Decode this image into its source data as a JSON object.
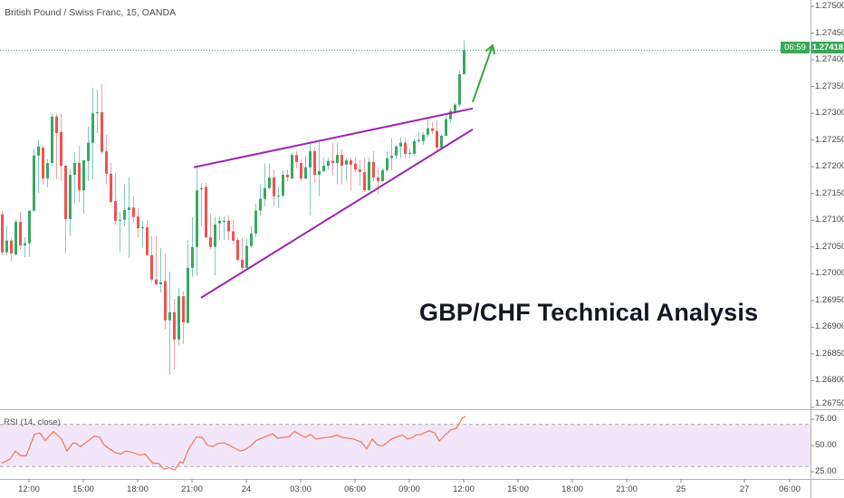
{
  "header": {
    "symbol_title": "British Pound / Swiss Franc, 15, OANDA"
  },
  "overlay_title": "GBP/CHF Technical Analysis",
  "colors": {
    "up_body": "#38a862",
    "up_wick": "#7fcbbf",
    "down_body": "#ef5350",
    "down_wick": "#f3a09f",
    "trendline": "#9c27b0",
    "arrow": "#2eaa3c",
    "rsi_line": "#f2764c",
    "rsi_band": "#f3e6fb",
    "price_label_bg": "#3aa757"
  },
  "price_axis": {
    "labels": [
      "1.27500",
      "1.27450",
      "1.27400",
      "1.27350",
      "1.27300",
      "1.27250",
      "1.27200",
      "1.27150",
      "1.27100",
      "1.27050",
      "1.27000",
      "1.26950",
      "1.26900",
      "1.26850",
      "1.26800",
      "1.26750"
    ],
    "range": [
      1.2675,
      1.275
    ],
    "current_price": "1.27418",
    "current_value": 1.27418,
    "countdown": "06:59"
  },
  "time_axis": {
    "labels": [
      {
        "text": "12:00",
        "bar": 6
      },
      {
        "text": "15:00",
        "bar": 18
      },
      {
        "text": "18:00",
        "bar": 30
      },
      {
        "text": "21:00",
        "bar": 42
      },
      {
        "text": "24",
        "bar": 54
      },
      {
        "text": "03:00",
        "bar": 66
      },
      {
        "text": "06:00",
        "bar": 78
      },
      {
        "text": "09:00",
        "bar": 90
      },
      {
        "text": "12:00",
        "bar": 102
      },
      {
        "text": "15:00",
        "bar": 114
      },
      {
        "text": "18:00",
        "bar": 126
      },
      {
        "text": "21:00",
        "bar": 138
      },
      {
        "text": "25",
        "bar": 150
      },
      {
        "text": "27",
        "bar": 164
      },
      {
        "text": "06:00",
        "bar": 174
      }
    ]
  },
  "rsi": {
    "label": "RSI (14, close)",
    "axis_labels": [
      "75.00",
      "50.00",
      "25.00"
    ],
    "upper_band": 70,
    "lower_band": 30,
    "points": [
      [
        0,
        33.1
      ],
      [
        1.8,
        36.9
      ],
      [
        3,
        44.7
      ],
      [
        4.2,
        40.3
      ],
      [
        5.4,
        40.3
      ],
      [
        7.2,
        60.5
      ],
      [
        8.4,
        62
      ],
      [
        9.6,
        54.8
      ],
      [
        11.4,
        63.4
      ],
      [
        13.2,
        56.2
      ],
      [
        14.4,
        44.7
      ],
      [
        15.6,
        51.9
      ],
      [
        16.2,
        52.5
      ],
      [
        17.4,
        49
      ],
      [
        19.2,
        54.8
      ],
      [
        20.4,
        59.1
      ],
      [
        21.6,
        57.7
      ],
      [
        22.6,
        50.4
      ],
      [
        25,
        43.2
      ],
      [
        26.2,
        41.8
      ],
      [
        27.4,
        44.7
      ],
      [
        28.6,
        43.8
      ],
      [
        30.4,
        40.9
      ],
      [
        31.6,
        41.8
      ],
      [
        33.4,
        33.1
      ],
      [
        34.6,
        33.1
      ],
      [
        35.8,
        27.3
      ],
      [
        37,
        28.8
      ],
      [
        38.2,
        26.7
      ],
      [
        39.4,
        34.5
      ],
      [
        40,
        33.1
      ],
      [
        41.2,
        46.1
      ],
      [
        43,
        58.2
      ],
      [
        44.2,
        57.7
      ],
      [
        45.4,
        50.4
      ],
      [
        46.6,
        49
      ],
      [
        47.8,
        51.9
      ],
      [
        49,
        52.5
      ],
      [
        50.2,
        50.4
      ],
      [
        52.6,
        44.7
      ],
      [
        53.8,
        46.1
      ],
      [
        55,
        49.6
      ],
      [
        56.2,
        54.8
      ],
      [
        58.6,
        59.1
      ],
      [
        59.8,
        61.1
      ],
      [
        61,
        56.8
      ],
      [
        62.2,
        57.7
      ],
      [
        63.4,
        58.2
      ],
      [
        64.6,
        63.4
      ],
      [
        67,
        57.7
      ],
      [
        68.2,
        60.5
      ],
      [
        69.4,
        56.2
      ],
      [
        71.6,
        57.7
      ],
      [
        72.8,
        58.2
      ],
      [
        74,
        60
      ],
      [
        75.2,
        57.7
      ],
      [
        77.6,
        56.2
      ],
      [
        79.4,
        53.3
      ],
      [
        80.6,
        46.7
      ],
      [
        81.8,
        56.2
      ],
      [
        83,
        50.4
      ],
      [
        84.2,
        49.6
      ],
      [
        86,
        56.2
      ],
      [
        88.4,
        60
      ],
      [
        89.6,
        56.2
      ],
      [
        90.8,
        57.7
      ],
      [
        91.4,
        60
      ],
      [
        92.6,
        60.5
      ],
      [
        94.4,
        64
      ],
      [
        95.6,
        62
      ],
      [
        96.6,
        54.2
      ],
      [
        98,
        60.5
      ],
      [
        99.2,
        64.9
      ],
      [
        100.4,
        66.3
      ],
      [
        101.6,
        75.6
      ],
      [
        102.4,
        77.9
      ]
    ]
  },
  "chart_data": {
    "type": "candlestick",
    "title": "British Pound / Swiss Franc, 15, OANDA",
    "ylim": [
      1.2675,
      1.275
    ],
    "fields": [
      "open",
      "high",
      "low",
      "close"
    ],
    "candles": [
      [
        1.27111,
        1.27118,
        1.27035,
        1.2704
      ],
      [
        1.2704,
        1.27089,
        1.27035,
        1.27062
      ],
      [
        1.27062,
        1.27068,
        1.27023,
        1.27038
      ],
      [
        1.27036,
        1.27101,
        1.27033,
        1.27097
      ],
      [
        1.27097,
        1.27116,
        1.27045,
        1.27053
      ],
      [
        1.27053,
        1.27068,
        1.27031,
        1.27057
      ],
      [
        1.27057,
        1.27118,
        1.27031,
        1.27118
      ],
      [
        1.27118,
        1.27234,
        1.27116,
        1.27221
      ],
      [
        1.27221,
        1.2725,
        1.27151,
        1.27238
      ],
      [
        1.27236,
        1.2724,
        1.27167,
        1.27178
      ],
      [
        1.27178,
        1.27214,
        1.27162,
        1.27207
      ],
      [
        1.27207,
        1.27299,
        1.27202,
        1.27294
      ],
      [
        1.27294,
        1.27299,
        1.27177,
        1.27263
      ],
      [
        1.27265,
        1.27299,
        1.27173,
        1.27202
      ],
      [
        1.27202,
        1.27202,
        1.27038,
        1.27102
      ],
      [
        1.27102,
        1.27195,
        1.2707,
        1.27185
      ],
      [
        1.27185,
        1.27228,
        1.27131,
        1.27207
      ],
      [
        1.27207,
        1.27239,
        1.27133,
        1.27156
      ],
      [
        1.27156,
        1.27212,
        1.27112,
        1.27212
      ],
      [
        1.27211,
        1.27275,
        1.27173,
        1.27245
      ],
      [
        1.27245,
        1.27348,
        1.27177,
        1.273
      ],
      [
        1.273,
        1.27344,
        1.27263,
        1.27302
      ],
      [
        1.27302,
        1.27355,
        1.27224,
        1.27228
      ],
      [
        1.27229,
        1.2726,
        1.27167,
        1.27187
      ],
      [
        1.27187,
        1.27207,
        1.27133,
        1.27134
      ],
      [
        1.27136,
        1.27189,
        1.27092,
        1.27099
      ],
      [
        1.27099,
        1.27116,
        1.27041,
        1.27101
      ],
      [
        1.27101,
        1.27167,
        1.27089,
        1.27119
      ],
      [
        1.27119,
        1.2718,
        1.27029,
        1.27124
      ],
      [
        1.27124,
        1.27146,
        1.27096,
        1.27106
      ],
      [
        1.27107,
        1.27123,
        1.27068,
        1.27085
      ],
      [
        1.27085,
        1.27099,
        1.2705,
        1.27087
      ],
      [
        1.27087,
        1.27101,
        1.27033,
        1.27035
      ],
      [
        1.27035,
        1.2707,
        1.26984,
        1.26989
      ],
      [
        1.26989,
        1.2707,
        1.26979,
        1.2698
      ],
      [
        1.2698,
        1.27048,
        1.26965,
        1.26984
      ],
      [
        1.26986,
        1.27038,
        1.26896,
        1.26913
      ],
      [
        1.26913,
        1.27004,
        1.26811,
        1.26928
      ],
      [
        1.26928,
        1.26953,
        1.26821,
        1.26877
      ],
      [
        1.26877,
        1.26974,
        1.26865,
        1.26958
      ],
      [
        1.26958,
        1.26967,
        1.26869,
        1.26909
      ],
      [
        1.26908,
        1.27063,
        1.26908,
        1.27011
      ],
      [
        1.27011,
        1.27106,
        1.26994,
        1.2705
      ],
      [
        1.2705,
        1.27199,
        1.26996,
        1.27156
      ],
      [
        1.27158,
        1.2717,
        1.27089,
        1.2716
      ],
      [
        1.27162,
        1.2717,
        1.27067,
        1.27068
      ],
      [
        1.27068,
        1.27112,
        1.27046,
        1.2705
      ],
      [
        1.2705,
        1.27107,
        1.26997,
        1.27092
      ],
      [
        1.27094,
        1.27107,
        1.27062,
        1.27099
      ],
      [
        1.27097,
        1.27107,
        1.27063,
        1.27099
      ],
      [
        1.27099,
        1.27109,
        1.27063,
        1.27079
      ],
      [
        1.27079,
        1.27101,
        1.27055,
        1.27062
      ],
      [
        1.27063,
        1.27068,
        1.27023,
        1.27026
      ],
      [
        1.27026,
        1.27068,
        1.27007,
        1.27011
      ],
      [
        1.27011,
        1.27065,
        1.27011,
        1.27052
      ],
      [
        1.27052,
        1.27089,
        1.27048,
        1.27075
      ],
      [
        1.27075,
        1.27131,
        1.27068,
        1.27118
      ],
      [
        1.27118,
        1.27168,
        1.27109,
        1.2714
      ],
      [
        1.2714,
        1.27206,
        1.27126,
        1.2716
      ],
      [
        1.2716,
        1.27206,
        1.27158,
        1.2718
      ],
      [
        1.2718,
        1.27194,
        1.27126,
        1.27145
      ],
      [
        1.27145,
        1.27163,
        1.27123,
        1.27146
      ],
      [
        1.27146,
        1.27194,
        1.27143,
        1.27185
      ],
      [
        1.27185,
        1.27195,
        1.27173,
        1.2718
      ],
      [
        1.27178,
        1.27226,
        1.27177,
        1.27222
      ],
      [
        1.27222,
        1.27229,
        1.27197,
        1.27209
      ],
      [
        1.27207,
        1.27214,
        1.27173,
        1.27178
      ],
      [
        1.27178,
        1.27221,
        1.27177,
        1.27199
      ],
      [
        1.27199,
        1.27246,
        1.27109,
        1.27229
      ],
      [
        1.27229,
        1.27236,
        1.2717,
        1.27185
      ],
      [
        1.27185,
        1.27246,
        1.27145,
        1.27192
      ],
      [
        1.27192,
        1.27217,
        1.2719,
        1.27202
      ],
      [
        1.27202,
        1.27217,
        1.27194,
        1.27211
      ],
      [
        1.27211,
        1.27245,
        1.27184,
        1.27207
      ],
      [
        1.27207,
        1.27245,
        1.27167,
        1.27222
      ],
      [
        1.27222,
        1.27233,
        1.27167,
        1.27202
      ],
      [
        1.27204,
        1.27217,
        1.27173,
        1.27212
      ],
      [
        1.27212,
        1.27217,
        1.27156,
        1.27204
      ],
      [
        1.27206,
        1.27217,
        1.2719,
        1.27195
      ],
      [
        1.27195,
        1.27212,
        1.27165,
        1.2719
      ],
      [
        1.2719,
        1.27216,
        1.27153,
        1.27156
      ],
      [
        1.27156,
        1.27217,
        1.27156,
        1.27209
      ],
      [
        1.27209,
        1.27229,
        1.27173,
        1.2718
      ],
      [
        1.2718,
        1.27199,
        1.27148,
        1.27173
      ],
      [
        1.27173,
        1.27197,
        1.27172,
        1.27194
      ],
      [
        1.27194,
        1.27229,
        1.2719,
        1.27216
      ],
      [
        1.27216,
        1.27253,
        1.27194,
        1.27221
      ],
      [
        1.27221,
        1.27241,
        1.27216,
        1.27238
      ],
      [
        1.27238,
        1.27255,
        1.27216,
        1.27245
      ],
      [
        1.27245,
        1.27255,
        1.27216,
        1.27224
      ],
      [
        1.27224,
        1.27234,
        1.27216,
        1.27226
      ],
      [
        1.27224,
        1.27253,
        1.27221,
        1.27248
      ],
      [
        1.27248,
        1.27265,
        1.27245,
        1.2725
      ],
      [
        1.27248,
        1.27265,
        1.27241,
        1.2726
      ],
      [
        1.2726,
        1.27289,
        1.27255,
        1.27272
      ],
      [
        1.27272,
        1.27283,
        1.27261,
        1.27267
      ],
      [
        1.27267,
        1.27287,
        1.27231,
        1.27236
      ],
      [
        1.27236,
        1.27261,
        1.27231,
        1.27258
      ],
      [
        1.27258,
        1.27295,
        1.27258,
        1.27289
      ],
      [
        1.27289,
        1.27309,
        1.27282,
        1.27304
      ],
      [
        1.27304,
        1.27319,
        1.27299,
        1.27316
      ],
      [
        1.27316,
        1.2738,
        1.27312,
        1.27373
      ],
      [
        1.27373,
        1.27436,
        1.27373,
        1.27418
      ]
    ],
    "drawings": {
      "upper_trendline": {
        "from": [
          42.4,
          1.27199
        ],
        "to": [
          104,
          1.27309
        ]
      },
      "lower_trendline": {
        "from": [
          44,
          1.26955
        ],
        "to": [
          104,
          1.2727
        ]
      },
      "target_arrow": {
        "from": [
          104,
          1.27321
        ],
        "to": [
          108.4,
          1.27427
        ]
      }
    }
  }
}
